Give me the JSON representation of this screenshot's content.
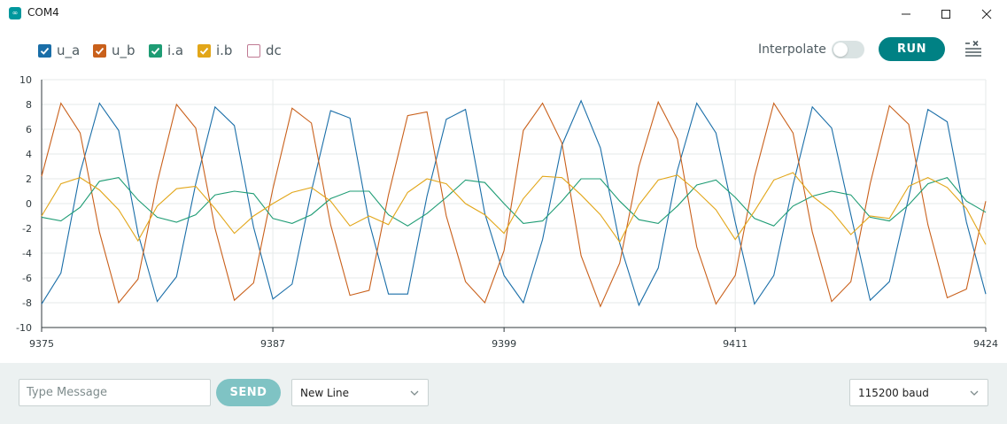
{
  "window": {
    "title": "COM4",
    "app_icon": "arduino-infinity-icon",
    "controls": [
      "minimize-icon",
      "maximize-icon",
      "close-icon"
    ]
  },
  "legend": [
    {
      "label": "u_a",
      "color": "#1a6ea8",
      "checked": true
    },
    {
      "label": "u_b",
      "color": "#c9601b",
      "checked": true
    },
    {
      "label": "i.a",
      "color": "#1e9c74",
      "checked": true
    },
    {
      "label": "i.b",
      "color": "#e2a619",
      "checked": true
    },
    {
      "label": "dc",
      "color": "#c07a93",
      "checked": false
    }
  ],
  "toolbar": {
    "interpolate_label": "Interpolate",
    "interpolate_on": false,
    "run_label": "RUN",
    "clear_icon": "clear-list-icon"
  },
  "chart_data": {
    "type": "line",
    "xlim": [
      9375,
      9424
    ],
    "ylim": [
      -10,
      10
    ],
    "x_ticks": [
      9375,
      9387,
      9399,
      9411,
      9424
    ],
    "y_ticks": [
      -10,
      -8,
      -6,
      -4,
      -2,
      0,
      2,
      4,
      6,
      8,
      10
    ],
    "grid": true,
    "x": [
      9375,
      9376,
      9377,
      9378,
      9379,
      9380,
      9381,
      9382,
      9383,
      9384,
      9385,
      9386,
      9387,
      9388,
      9389,
      9390,
      9391,
      9392,
      9393,
      9394,
      9395,
      9396,
      9397,
      9398,
      9399,
      9400,
      9401,
      9402,
      9403,
      9404,
      9405,
      9406,
      9407,
      9408,
      9409,
      9410,
      9411,
      9412,
      9413,
      9414,
      9415,
      9416,
      9417,
      9418,
      9419,
      9420,
      9421,
      9422,
      9423,
      9424
    ],
    "series": [
      {
        "name": "u_a",
        "color": "#1a6ea8",
        "values": [
          -8.1,
          -5.6,
          2.5,
          8.1,
          5.9,
          -2.4,
          -7.9,
          -5.9,
          1.6,
          7.8,
          6.3,
          -1.9,
          -7.7,
          -6.5,
          1.0,
          7.5,
          6.9,
          -1.5,
          -7.3,
          -7.3,
          0.6,
          6.8,
          7.6,
          -0.8,
          -5.8,
          -8.0,
          -2.9,
          4.7,
          8.3,
          4.5,
          -3.2,
          -8.2,
          -5.2,
          2.7,
          8.1,
          5.7,
          -1.5,
          -8.1,
          -5.8,
          1.5,
          7.8,
          6.1,
          -0.9,
          -7.8,
          -6.3,
          0.5,
          7.6,
          6.6,
          -1.5,
          -7.3
        ]
      },
      {
        "name": "u_b",
        "color": "#c9601b",
        "values": [
          2.2,
          8.1,
          5.7,
          -2.3,
          -8.0,
          -6.1,
          1.7,
          8.0,
          6.1,
          -2.0,
          -7.8,
          -6.4,
          1.2,
          7.7,
          6.5,
          -1.7,
          -7.4,
          -7.0,
          0.7,
          7.1,
          7.4,
          -1.0,
          -6.3,
          -8.0,
          -3.8,
          5.9,
          8.1,
          4.9,
          -4.2,
          -8.3,
          -4.8,
          3.0,
          8.2,
          5.2,
          -3.5,
          -8.1,
          -5.8,
          2.2,
          8.1,
          5.7,
          -2.3,
          -7.9,
          -6.3,
          1.6,
          7.9,
          6.4,
          -1.7,
          -7.6,
          -6.9,
          0.2
        ]
      },
      {
        "name": "i.a",
        "color": "#1e9c74",
        "values": [
          -1.1,
          -1.4,
          -0.3,
          1.8,
          2.1,
          0.3,
          -1.1,
          -1.5,
          -0.9,
          0.7,
          1.0,
          0.8,
          -1.2,
          -1.6,
          -0.9,
          0.4,
          1.0,
          1.0,
          -0.9,
          -1.8,
          -0.8,
          0.5,
          1.9,
          1.7,
          0.0,
          -1.6,
          -1.4,
          0.2,
          2.0,
          2.0,
          0.2,
          -1.3,
          -1.6,
          -0.2,
          1.5,
          1.9,
          0.5,
          -1.2,
          -1.8,
          -0.2,
          0.6,
          1.0,
          0.7,
          -1.1,
          -1.4,
          -0.1,
          1.6,
          2.1,
          0.2,
          -0.7
        ]
      },
      {
        "name": "i.b",
        "color": "#e2a619",
        "values": [
          -1.0,
          1.6,
          2.1,
          1.1,
          -0.5,
          -3.0,
          -0.2,
          1.2,
          1.4,
          -0.4,
          -2.4,
          -1.0,
          0.0,
          0.9,
          1.3,
          0.2,
          -1.8,
          -1.0,
          -1.7,
          0.9,
          2.0,
          1.6,
          0.0,
          -0.9,
          -2.4,
          0.4,
          2.2,
          2.1,
          0.7,
          -0.9,
          -3.1,
          -0.1,
          1.9,
          2.3,
          1.0,
          -0.5,
          -2.9,
          -0.6,
          1.9,
          2.5,
          0.6,
          -0.6,
          -2.5,
          -1.0,
          -1.2,
          1.4,
          2.1,
          1.3,
          -0.4,
          -3.3
        ]
      }
    ]
  },
  "bottom": {
    "message_placeholder": "Type Message",
    "message_value": "",
    "send_label": "SEND",
    "line_ending": "New Line",
    "baud_rate": "115200 baud"
  }
}
